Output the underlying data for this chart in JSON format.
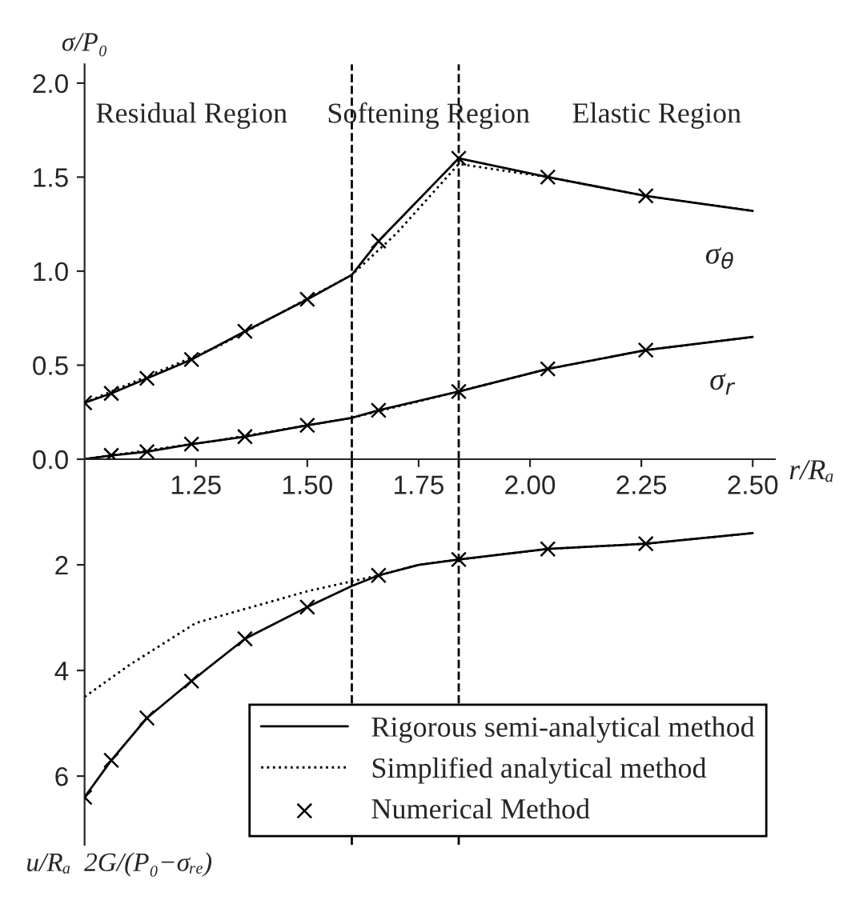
{
  "chart_data": [
    {
      "type": "line",
      "ylabel": "σ/P₀",
      "xlabel": "r/Rₐ",
      "xlim": [
        1.0,
        2.55
      ],
      "xticks": [
        {
          "value": 1.25,
          "label": "1.25"
        },
        {
          "value": 1.5,
          "label": "1.50"
        },
        {
          "value": 1.75,
          "label": "1.75"
        },
        {
          "value": 2.0,
          "label": "2.00"
        },
        {
          "value": 2.25,
          "label": "2.25"
        },
        {
          "value": 2.5,
          "label": "2.50"
        }
      ],
      "ylim": [
        0,
        2.1
      ],
      "yticks": [
        {
          "value": 0,
          "label": "0.0"
        },
        {
          "value": 0.5,
          "label": "0.5"
        },
        {
          "value": 1.0,
          "label": "1.0"
        },
        {
          "value": 1.5,
          "label": "1.5"
        },
        {
          "value": 2.0,
          "label": "2.0"
        }
      ],
      "grid": false,
      "legend": false,
      "series": [
        {
          "line_style": "solid",
          "marker": "none",
          "color": "#000000",
          "x": [
            1.0,
            1.06,
            1.14,
            1.24,
            1.36,
            1.5,
            1.6,
            1.66,
            1.84,
            2.04,
            2.26,
            2.5
          ],
          "values": [
            0.3,
            0.35,
            0.43,
            0.53,
            0.68,
            0.85,
            0.98,
            1.16,
            1.6,
            1.5,
            1.4,
            1.32
          ]
        },
        {
          "line_style": "dotted",
          "marker": "none",
          "color": "#000000",
          "x": [
            1.0,
            1.3,
            1.6,
            1.7,
            1.84,
            2.04,
            2.26,
            2.5
          ],
          "values": [
            0.3,
            0.6,
            0.98,
            1.2,
            1.57,
            1.5,
            1.4,
            1.32
          ]
        },
        {
          "type": "scatter",
          "marker": "cross",
          "color": "#000000",
          "x": [
            1.0,
            1.06,
            1.14,
            1.24,
            1.36,
            1.5,
            1.66,
            1.84,
            2.04,
            2.26
          ],
          "values": [
            0.3,
            0.35,
            0.43,
            0.53,
            0.68,
            0.85,
            1.16,
            1.6,
            1.5,
            1.4
          ]
        },
        {
          "line_style": "solid",
          "marker": "none",
          "color": "#000000",
          "x": [
            1.0,
            1.06,
            1.14,
            1.24,
            1.36,
            1.5,
            1.6,
            1.66,
            1.84,
            2.04,
            2.26,
            2.5
          ],
          "values": [
            0.0,
            0.02,
            0.04,
            0.08,
            0.12,
            0.18,
            0.22,
            0.26,
            0.36,
            0.48,
            0.58,
            0.65
          ]
        },
        {
          "line_style": "dotted",
          "marker": "none",
          "color": "#000000",
          "x": [
            1.0,
            1.3,
            1.6,
            1.84,
            2.04,
            2.26,
            2.5
          ],
          "values": [
            0.0,
            0.1,
            0.22,
            0.36,
            0.48,
            0.58,
            0.65
          ]
        },
        {
          "type": "scatter",
          "marker": "cross",
          "color": "#000000",
          "x": [
            1.06,
            1.14,
            1.24,
            1.36,
            1.5,
            1.66,
            1.84,
            2.04,
            2.26
          ],
          "values": [
            0.02,
            0.04,
            0.08,
            0.12,
            0.18,
            0.26,
            0.36,
            0.48,
            0.58
          ]
        }
      ],
      "ref_lines": [
        {
          "axis": "x",
          "value": 1.6,
          "line_style": "dashed",
          "color": "#000000"
        },
        {
          "axis": "x",
          "value": 1.84,
          "line_style": "dashed",
          "color": "#000000"
        }
      ],
      "annotations": [
        "Residual Region",
        "Softening Region",
        "Elastic Region",
        {
          "text": "σ$_{θ}$",
          "x": 2.5,
          "y": 1.32
        },
        {
          "text": "σ$_{r}$",
          "x": 2.5,
          "y": 0.65
        }
      ]
    },
    {
      "type": "line",
      "ylabel": "u/Rₐ  2G/(P₀−σᵣₑ)",
      "xlim": [
        1.0,
        2.55
      ],
      "ylim": [
        7.3,
        0
      ],
      "yticks": [
        2,
        4,
        6
      ],
      "tick_labels": "y",
      "grid": false,
      "legend": "bottom right",
      "series": [
        {
          "name": "Rigorous semi-analytical method",
          "line_style": "solid",
          "marker": "none",
          "color": "#000000",
          "x": [
            1.0,
            1.06,
            1.14,
            1.24,
            1.36,
            1.5,
            1.6,
            1.66,
            1.75,
            1.84,
            2.04,
            2.26,
            2.5
          ],
          "values": [
            6.4,
            5.7,
            4.9,
            4.2,
            3.4,
            2.8,
            2.4,
            2.2,
            2.0,
            1.9,
            1.7,
            1.6,
            1.4
          ]
        },
        {
          "name": "Simplified analytical method",
          "line_style": "dotted",
          "marker": "none",
          "color": "#000000",
          "x": [
            1.0,
            1.1,
            1.25,
            1.5,
            1.66,
            1.75,
            1.84,
            2.04,
            2.26,
            2.5
          ],
          "values": [
            4.5,
            3.9,
            3.1,
            2.5,
            2.2,
            2.0,
            1.9,
            1.7,
            1.6,
            1.4
          ]
        },
        {
          "name": "Numerical Method",
          "type": "scatter",
          "marker": "cross",
          "color": "#000000",
          "x": [
            1.0,
            1.06,
            1.14,
            1.24,
            1.36,
            1.5,
            1.66,
            1.84,
            2.04,
            2.26
          ],
          "values": [
            6.4,
            5.7,
            4.9,
            4.2,
            3.4,
            2.8,
            2.2,
            1.9,
            1.7,
            1.6
          ]
        }
      ],
      "ref_lines": [
        {
          "axis": "x",
          "value": 1.6,
          "line_style": "dashed",
          "color": "#000000"
        },
        {
          "axis": "x",
          "value": 1.84,
          "line_style": "dashed",
          "color": "#000000"
        }
      ]
    }
  ]
}
